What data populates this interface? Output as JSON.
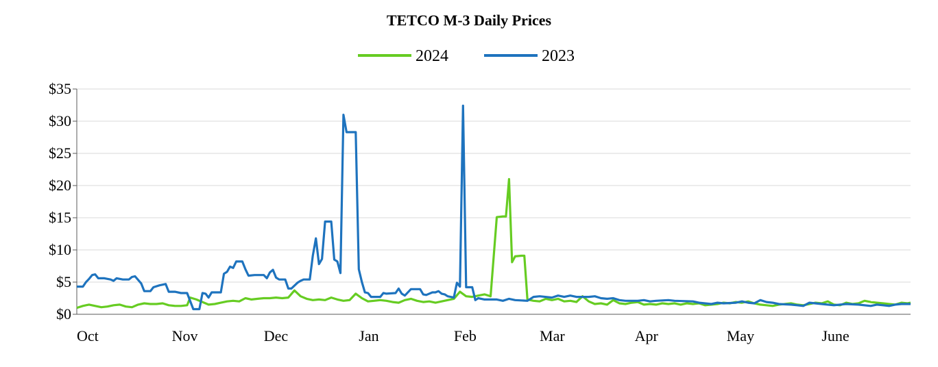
{
  "chart_data": {
    "type": "line",
    "title": "TETCO M-3 Daily Prices",
    "xlabel": "",
    "ylabel": "",
    "ylim": [
      0,
      35
    ],
    "yticks": [
      0,
      5,
      10,
      15,
      20,
      25,
      30,
      35
    ],
    "ytick_labels": [
      "$0",
      "$5",
      "$10",
      "$15",
      "$20",
      "$25",
      "$30",
      "$35"
    ],
    "x_unit": "days since Oct 1",
    "xlim": [
      0,
      272
    ],
    "xticks": [
      0,
      31,
      61,
      92,
      123,
      151,
      182,
      212,
      243
    ],
    "xtick_labels": [
      "Oct",
      "Nov",
      "Dec",
      "Jan",
      "Feb",
      "Mar",
      "Apr",
      "May",
      "June"
    ],
    "grid": "horizontal",
    "legend_position": "top-center",
    "series": [
      {
        "name": "2024",
        "color": "#66cc22",
        "points": [
          [
            0,
            1.0
          ],
          [
            2,
            1.3
          ],
          [
            4,
            1.5
          ],
          [
            6,
            1.3
          ],
          [
            8,
            1.1
          ],
          [
            10,
            1.2
          ],
          [
            12,
            1.4
          ],
          [
            14,
            1.5
          ],
          [
            16,
            1.2
          ],
          [
            18,
            1.1
          ],
          [
            20,
            1.5
          ],
          [
            22,
            1.7
          ],
          [
            24,
            1.6
          ],
          [
            26,
            1.6
          ],
          [
            28,
            1.7
          ],
          [
            30,
            1.4
          ],
          [
            32,
            1.3
          ],
          [
            34,
            1.3
          ],
          [
            36,
            1.4
          ],
          [
            37,
            2.6
          ],
          [
            39,
            2.3
          ],
          [
            41,
            1.9
          ],
          [
            43,
            1.5
          ],
          [
            45,
            1.6
          ],
          [
            47,
            1.8
          ],
          [
            49,
            2.0
          ],
          [
            51,
            2.1
          ],
          [
            53,
            2.0
          ],
          [
            55,
            2.5
          ],
          [
            57,
            2.3
          ],
          [
            59,
            2.4
          ],
          [
            61,
            2.5
          ],
          [
            63,
            2.5
          ],
          [
            65,
            2.6
          ],
          [
            67,
            2.5
          ],
          [
            69,
            2.6
          ],
          [
            71,
            3.7
          ],
          [
            73,
            2.8
          ],
          [
            75,
            2.4
          ],
          [
            77,
            2.2
          ],
          [
            79,
            2.3
          ],
          [
            81,
            2.2
          ],
          [
            83,
            2.6
          ],
          [
            85,
            2.3
          ],
          [
            87,
            2.1
          ],
          [
            89,
            2.2
          ],
          [
            91,
            3.2
          ],
          [
            93,
            2.5
          ],
          [
            95,
            2.0
          ],
          [
            97,
            2.1
          ],
          [
            99,
            2.2
          ],
          [
            101,
            2.1
          ],
          [
            103,
            1.9
          ],
          [
            105,
            1.8
          ],
          [
            107,
            2.2
          ],
          [
            109,
            2.4
          ],
          [
            111,
            2.1
          ],
          [
            113,
            1.9
          ],
          [
            115,
            2.0
          ],
          [
            117,
            1.8
          ],
          [
            119,
            2.0
          ],
          [
            121,
            2.2
          ],
          [
            123,
            2.4
          ],
          [
            125,
            3.5
          ],
          [
            127,
            2.8
          ],
          [
            129,
            2.7
          ],
          [
            131,
            2.9
          ],
          [
            133,
            3.1
          ],
          [
            135,
            2.8
          ],
          [
            137,
            15.1
          ],
          [
            139,
            15.2
          ],
          [
            140,
            15.2
          ],
          [
            141,
            21.0
          ],
          [
            142,
            8.1
          ],
          [
            143,
            9.0
          ],
          [
            145,
            9.1
          ],
          [
            146,
            9.1
          ],
          [
            147,
            2.3
          ],
          [
            149,
            2.1
          ],
          [
            151,
            2.0
          ],
          [
            153,
            2.4
          ],
          [
            155,
            2.2
          ],
          [
            157,
            2.4
          ],
          [
            159,
            2.0
          ],
          [
            161,
            2.1
          ],
          [
            163,
            1.9
          ],
          [
            165,
            2.8
          ],
          [
            167,
            2.0
          ],
          [
            169,
            1.6
          ],
          [
            171,
            1.7
          ],
          [
            173,
            1.5
          ],
          [
            175,
            2.2
          ],
          [
            177,
            1.7
          ],
          [
            179,
            1.6
          ],
          [
            181,
            1.8
          ],
          [
            183,
            1.9
          ],
          [
            185,
            1.5
          ],
          [
            187,
            1.6
          ],
          [
            189,
            1.5
          ],
          [
            191,
            1.7
          ],
          [
            193,
            1.6
          ],
          [
            195,
            1.7
          ],
          [
            197,
            1.5
          ],
          [
            199,
            1.7
          ],
          [
            201,
            1.6
          ],
          [
            203,
            1.7
          ],
          [
            205,
            1.4
          ],
          [
            207,
            1.5
          ],
          [
            209,
            1.6
          ],
          [
            211,
            1.8
          ],
          [
            213,
            1.7
          ],
          [
            215,
            1.9
          ],
          [
            217,
            1.8
          ],
          [
            219,
            2.0
          ],
          [
            221,
            1.7
          ],
          [
            223,
            1.5
          ],
          [
            225,
            1.4
          ],
          [
            227,
            1.3
          ],
          [
            229,
            1.5
          ],
          [
            231,
            1.6
          ],
          [
            233,
            1.7
          ],
          [
            235,
            1.5
          ],
          [
            237,
            1.4
          ],
          [
            239,
            1.6
          ],
          [
            241,
            1.8
          ],
          [
            243,
            1.7
          ],
          [
            245,
            2.0
          ],
          [
            247,
            1.5
          ],
          [
            249,
            1.4
          ],
          [
            251,
            1.8
          ],
          [
            253,
            1.6
          ],
          [
            255,
            1.7
          ],
          [
            257,
            2.1
          ],
          [
            259,
            1.9
          ],
          [
            261,
            1.8
          ],
          [
            263,
            1.7
          ],
          [
            265,
            1.6
          ],
          [
            267,
            1.5
          ],
          [
            269,
            1.8
          ],
          [
            271,
            1.7
          ],
          [
            272,
            1.8
          ]
        ]
      },
      {
        "name": "2023",
        "color": "#1e73be",
        "points": [
          [
            0,
            4.3
          ],
          [
            2,
            4.3
          ],
          [
            3,
            5.0
          ],
          [
            4,
            5.5
          ],
          [
            5,
            6.1
          ],
          [
            6,
            6.2
          ],
          [
            7,
            5.6
          ],
          [
            9,
            5.6
          ],
          [
            11,
            5.4
          ],
          [
            12,
            5.2
          ],
          [
            13,
            5.6
          ],
          [
            15,
            5.4
          ],
          [
            17,
            5.4
          ],
          [
            18,
            5.8
          ],
          [
            19,
            5.9
          ],
          [
            21,
            4.8
          ],
          [
            22,
            3.6
          ],
          [
            24,
            3.6
          ],
          [
            25,
            4.2
          ],
          [
            27,
            4.5
          ],
          [
            29,
            4.7
          ],
          [
            30,
            3.5
          ],
          [
            32,
            3.5
          ],
          [
            34,
            3.3
          ],
          [
            36,
            3.3
          ],
          [
            38,
            0.8
          ],
          [
            40,
            0.8
          ],
          [
            41,
            3.3
          ],
          [
            42,
            3.2
          ],
          [
            43,
            2.6
          ],
          [
            44,
            3.4
          ],
          [
            47,
            3.4
          ],
          [
            48,
            6.3
          ],
          [
            49,
            6.6
          ],
          [
            50,
            7.4
          ],
          [
            51,
            7.2
          ],
          [
            52,
            8.2
          ],
          [
            54,
            8.2
          ],
          [
            55,
            7.0
          ],
          [
            56,
            6.0
          ],
          [
            58,
            6.1
          ],
          [
            61,
            6.1
          ],
          [
            62,
            5.6
          ],
          [
            63,
            6.5
          ],
          [
            64,
            6.9
          ],
          [
            65,
            5.7
          ],
          [
            66,
            5.4
          ],
          [
            68,
            5.4
          ],
          [
            69,
            4.0
          ],
          [
            70,
            4.0
          ],
          [
            72,
            4.9
          ],
          [
            73,
            5.2
          ],
          [
            74,
            5.4
          ],
          [
            76,
            5.4
          ],
          [
            77,
            9.1
          ],
          [
            78,
            11.8
          ],
          [
            79,
            7.8
          ],
          [
            80,
            8.6
          ],
          [
            81,
            14.4
          ],
          [
            83,
            14.4
          ],
          [
            84,
            8.5
          ],
          [
            85,
            8.2
          ],
          [
            86,
            6.4
          ],
          [
            87,
            31.0
          ],
          [
            88,
            28.3
          ],
          [
            91,
            28.3
          ],
          [
            92,
            7.0
          ],
          [
            93,
            5.0
          ],
          [
            94,
            3.4
          ],
          [
            95,
            3.3
          ],
          [
            96,
            2.7
          ],
          [
            99,
            2.7
          ],
          [
            100,
            3.3
          ],
          [
            101,
            3.2
          ],
          [
            104,
            3.3
          ],
          [
            105,
            4.0
          ],
          [
            106,
            3.2
          ],
          [
            107,
            2.9
          ],
          [
            109,
            3.9
          ],
          [
            112,
            3.9
          ],
          [
            113,
            3.1
          ],
          [
            114,
            3.0
          ],
          [
            116,
            3.4
          ],
          [
            117,
            3.4
          ],
          [
            118,
            3.6
          ],
          [
            119,
            3.2
          ],
          [
            120,
            3.1
          ],
          [
            121,
            2.8
          ],
          [
            123,
            2.6
          ],
          [
            124,
            4.9
          ],
          [
            125,
            4.3
          ],
          [
            126,
            32.4
          ],
          [
            127,
            4.2
          ],
          [
            129,
            4.2
          ],
          [
            130,
            2.2
          ],
          [
            131,
            2.5
          ],
          [
            133,
            2.3
          ],
          [
            137,
            2.3
          ],
          [
            139,
            2.1
          ],
          [
            141,
            2.4
          ],
          [
            143,
            2.2
          ],
          [
            147,
            2.1
          ],
          [
            149,
            2.7
          ],
          [
            151,
            2.8
          ],
          [
            155,
            2.6
          ],
          [
            157,
            2.9
          ],
          [
            159,
            2.7
          ],
          [
            161,
            2.9
          ],
          [
            163,
            2.7
          ],
          [
            167,
            2.7
          ],
          [
            169,
            2.8
          ],
          [
            171,
            2.5
          ],
          [
            173,
            2.4
          ],
          [
            175,
            2.5
          ],
          [
            177,
            2.2
          ],
          [
            179,
            2.1
          ],
          [
            183,
            2.1
          ],
          [
            185,
            2.2
          ],
          [
            187,
            2.0
          ],
          [
            189,
            2.1
          ],
          [
            193,
            2.2
          ],
          [
            195,
            2.1
          ],
          [
            201,
            2.0
          ],
          [
            203,
            1.8
          ],
          [
            207,
            1.6
          ],
          [
            209,
            1.8
          ],
          [
            211,
            1.7
          ],
          [
            215,
            1.8
          ],
          [
            217,
            2.0
          ],
          [
            219,
            1.8
          ],
          [
            221,
            1.7
          ],
          [
            223,
            2.2
          ],
          [
            225,
            1.9
          ],
          [
            227,
            1.8
          ],
          [
            229,
            1.6
          ],
          [
            233,
            1.5
          ],
          [
            235,
            1.4
          ],
          [
            237,
            1.3
          ],
          [
            239,
            1.8
          ],
          [
            243,
            1.6
          ],
          [
            247,
            1.4
          ],
          [
            251,
            1.6
          ],
          [
            255,
            1.5
          ],
          [
            259,
            1.3
          ],
          [
            261,
            1.5
          ],
          [
            263,
            1.4
          ],
          [
            265,
            1.3
          ],
          [
            267,
            1.5
          ],
          [
            269,
            1.6
          ],
          [
            272,
            1.6
          ]
        ]
      }
    ]
  }
}
